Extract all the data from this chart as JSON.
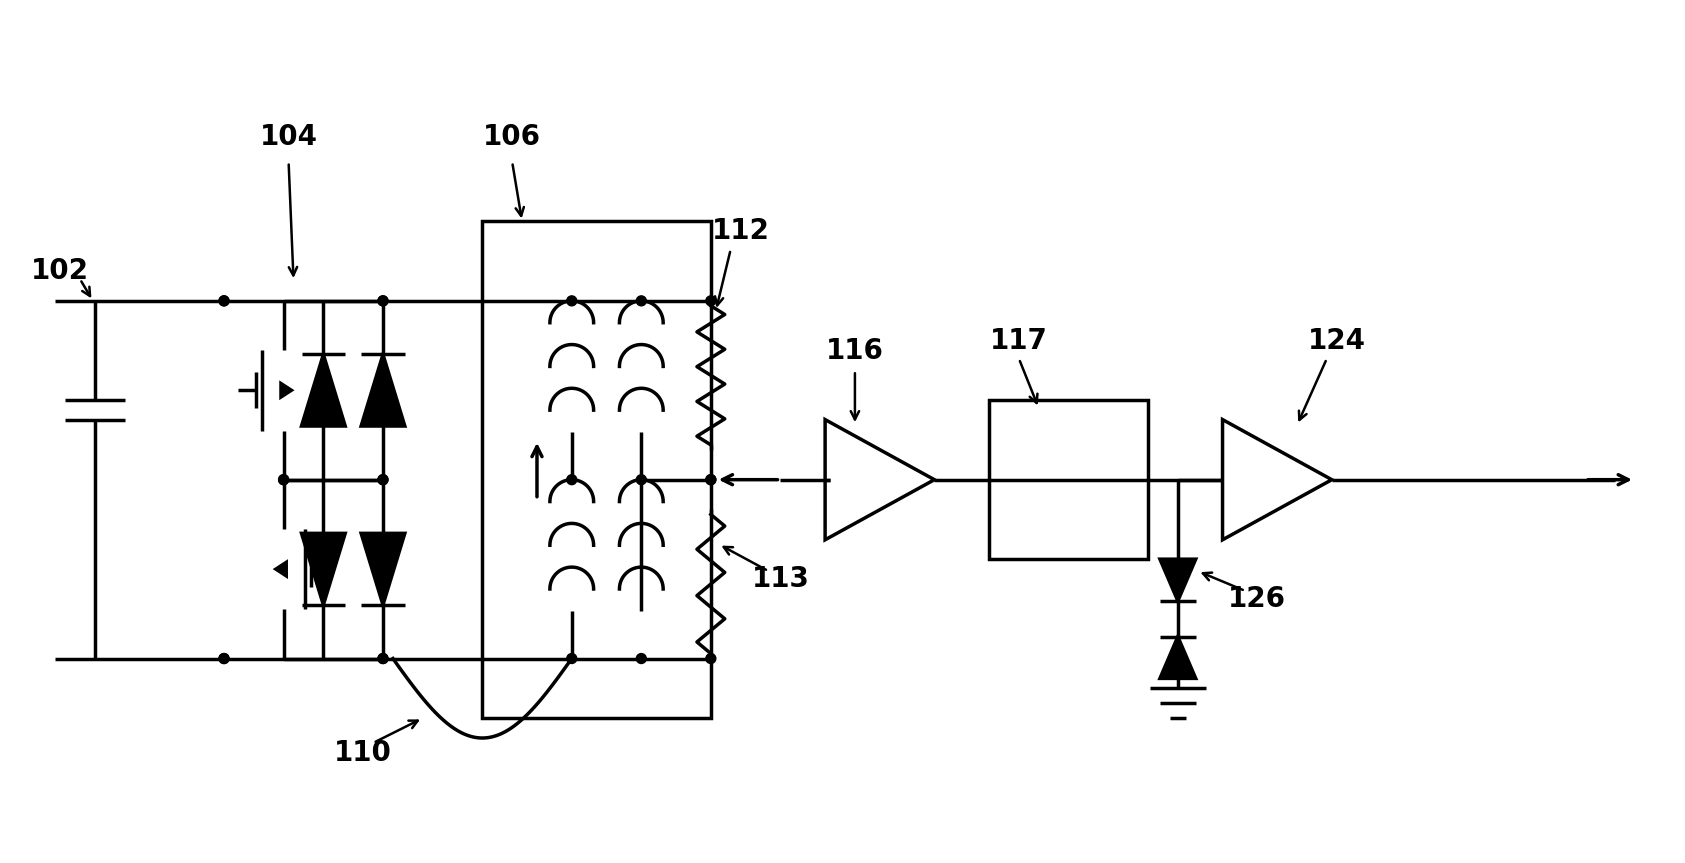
{
  "bg_color": "#ffffff",
  "line_color": "#000000",
  "lw": 2.5,
  "font_size": 20,
  "font_weight": "bold"
}
